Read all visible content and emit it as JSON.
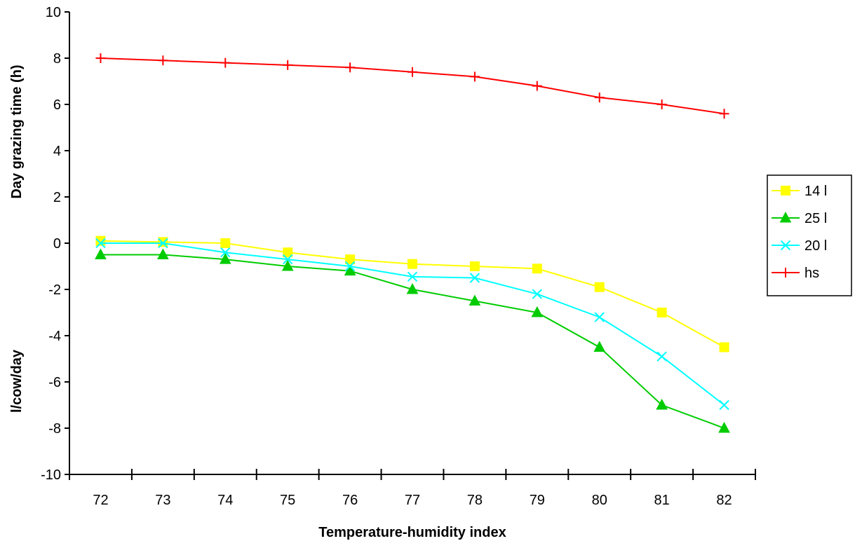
{
  "chart_data": {
    "type": "line",
    "xlabel": "Temperature-humidity index",
    "ylabel_top": "Day grazing time (h)",
    "ylabel_bottom": "l/cow/day",
    "categories": [
      "72",
      "73",
      "74",
      "75",
      "76",
      "77",
      "78",
      "79",
      "80",
      "81",
      "82"
    ],
    "ylim": [
      -10,
      10
    ],
    "yticks": [
      10,
      8,
      6,
      4,
      2,
      0,
      -2,
      -4,
      -6,
      -8,
      -10
    ],
    "grid": false,
    "legend_position": "right",
    "series": [
      {
        "name": "14 l",
        "color": "#FFFF00",
        "marker": "square",
        "values": [
          0.1,
          0.05,
          0.0,
          -0.4,
          -0.7,
          -0.9,
          -1.0,
          -1.1,
          -1.9,
          -3.0,
          -4.5
        ]
      },
      {
        "name": "25 l",
        "color": "#00CC00",
        "marker": "triangle",
        "values": [
          -0.5,
          -0.5,
          -0.7,
          -1.0,
          -1.2,
          -2.0,
          -2.5,
          -3.0,
          -4.5,
          -7.0,
          -8.0
        ]
      },
      {
        "name": "20 l",
        "color": "#00FFFF",
        "marker": "x",
        "values": [
          0.0,
          0.0,
          -0.4,
          -0.7,
          -1.0,
          -1.45,
          -1.5,
          -2.2,
          -3.2,
          -4.9,
          -7.0
        ]
      },
      {
        "name": "hs",
        "color": "#FF0000",
        "marker": "plus",
        "values": [
          8.0,
          7.9,
          7.8,
          7.7,
          7.6,
          7.4,
          7.2,
          6.8,
          6.3,
          6.0,
          5.6
        ]
      }
    ]
  }
}
